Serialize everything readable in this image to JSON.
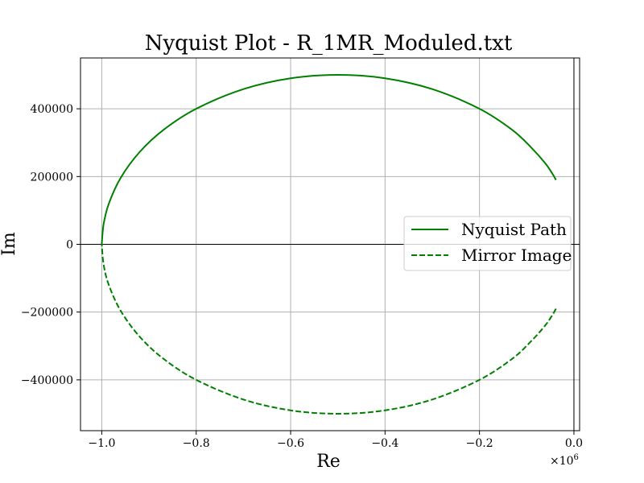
{
  "chart_data": {
    "type": "line",
    "title": "Nyquist Plot - R_1MR_Moduled.txt",
    "xlabel": "Re",
    "ylabel": "Im",
    "x_multiplier": "×10",
    "x_multiplier_exp": "6",
    "xlim": [
      -1.045,
      0.012
    ],
    "ylim": [
      -550000,
      550000
    ],
    "x_scale": 1000000,
    "x_ticks": [
      -1.0,
      -0.8,
      -0.6,
      -0.4,
      -0.2,
      0.0
    ],
    "x_tick_labels": [
      "−1.0",
      "−0.8",
      "−0.6",
      "−0.4",
      "−0.2",
      "0.0"
    ],
    "y_ticks": [
      -400000,
      -200000,
      0,
      200000,
      400000
    ],
    "y_tick_labels": [
      "−400000",
      "−200000",
      "0",
      "200000",
      "400000"
    ],
    "grid": true,
    "legend_position": "center-right",
    "series": [
      {
        "name": "Nyquist Path",
        "style": "solid",
        "color": "#008000",
        "x": [
          -38000,
          -45000,
          -60000,
          -90000,
          -130000,
          -200000,
          -300000,
          -400000,
          -500000,
          -600000,
          -700000,
          -800000,
          -870000,
          -920000,
          -960000,
          -985000,
          -996000,
          -1000000
        ],
        "y": [
          190000,
          207000,
          238000,
          285000,
          337000,
          400000,
          458000,
          490000,
          500000,
          490000,
          458000,
          400000,
          337000,
          272000,
          196000,
          120000,
          60000,
          0
        ]
      },
      {
        "name": "Mirror Image",
        "style": "dashed",
        "color": "#008000",
        "x": [
          -38000,
          -45000,
          -60000,
          -90000,
          -130000,
          -200000,
          -300000,
          -400000,
          -500000,
          -600000,
          -700000,
          -800000,
          -870000,
          -920000,
          -960000,
          -985000,
          -996000,
          -1000000
        ],
        "y": [
          -190000,
          -207000,
          -238000,
          -285000,
          -337000,
          -400000,
          -458000,
          -490000,
          -500000,
          -490000,
          -458000,
          -400000,
          -337000,
          -272000,
          -196000,
          -120000,
          -60000,
          0
        ]
      }
    ]
  }
}
